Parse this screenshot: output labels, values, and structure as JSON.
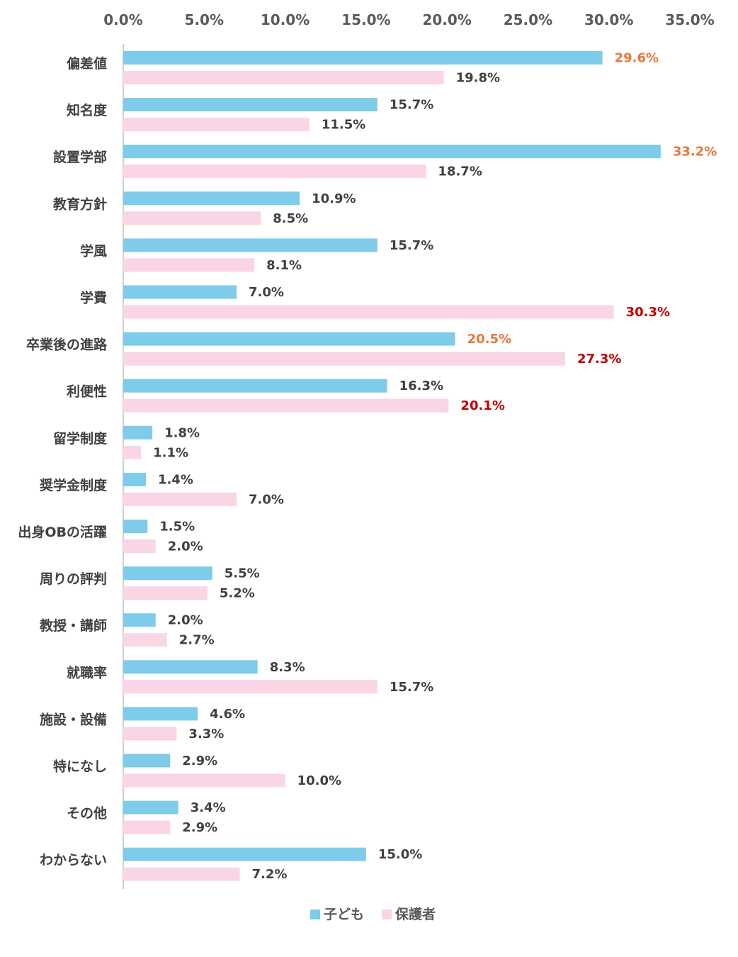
{
  "chart_data": {
    "type": "bar",
    "orientation": "horizontal",
    "title": "",
    "xlabel": "",
    "ylabel": "",
    "xlim": [
      0,
      35
    ],
    "tick_values": [
      0,
      5,
      10,
      15,
      20,
      25,
      30,
      35
    ],
    "tick_labels": [
      "0.0%",
      "5.0%",
      "10.0%",
      "15.0%",
      "20.0%",
      "25.0%",
      "30.0%",
      "35.0%"
    ],
    "x_axis_position": "top",
    "grid": false,
    "legend_position": "bottom-center",
    "categories": [
      "偏差値",
      "知名度",
      "設置学部",
      "教育方針",
      "学風",
      "学費",
      "卒業後の進路",
      "利便性",
      "留学制度",
      "奨学金制度",
      "出身OBの活躍",
      "周りの評判",
      "教授・講師",
      "就職率",
      "施設・設備",
      "特になし",
      "その他",
      "わからない"
    ],
    "series": [
      {
        "name": "子ども",
        "color": "#7ecbea",
        "values": [
          29.6,
          15.7,
          33.2,
          10.9,
          15.7,
          7.0,
          20.5,
          16.3,
          1.8,
          1.4,
          1.5,
          5.5,
          2.0,
          8.3,
          4.6,
          2.9,
          3.4,
          15.0
        ],
        "data_labels": [
          "29.6%",
          "15.7%",
          "33.2%",
          "10.9%",
          "15.7%",
          "7.0%",
          "20.5%",
          "16.3%",
          "1.8%",
          "1.4%",
          "1.5%",
          "5.5%",
          "2.0%",
          "8.3%",
          "4.6%",
          "2.9%",
          "3.4%",
          "15.0%"
        ],
        "highlight_color": "#e8773a",
        "highlighted": [
          0,
          2,
          6
        ]
      },
      {
        "name": "保護者",
        "color": "#f9d5e5",
        "values": [
          19.8,
          11.5,
          18.7,
          8.5,
          8.1,
          30.3,
          27.3,
          20.1,
          1.1,
          7.0,
          2.0,
          5.2,
          2.7,
          15.7,
          3.3,
          10.0,
          2.9,
          7.2
        ],
        "data_labels": [
          "19.8%",
          "11.5%",
          "18.7%",
          "8.5%",
          "8.1%",
          "30.3%",
          "27.3%",
          "20.1%",
          "1.1%",
          "7.0%",
          "2.0%",
          "5.2%",
          "2.7%",
          "15.7%",
          "3.3%",
          "10.0%",
          "2.9%",
          "7.2%"
        ],
        "highlight_color": "#c00000",
        "highlighted": [
          5,
          6,
          7
        ]
      }
    ],
    "label_color": "#404040",
    "axis_color": "#bfbfbf"
  }
}
